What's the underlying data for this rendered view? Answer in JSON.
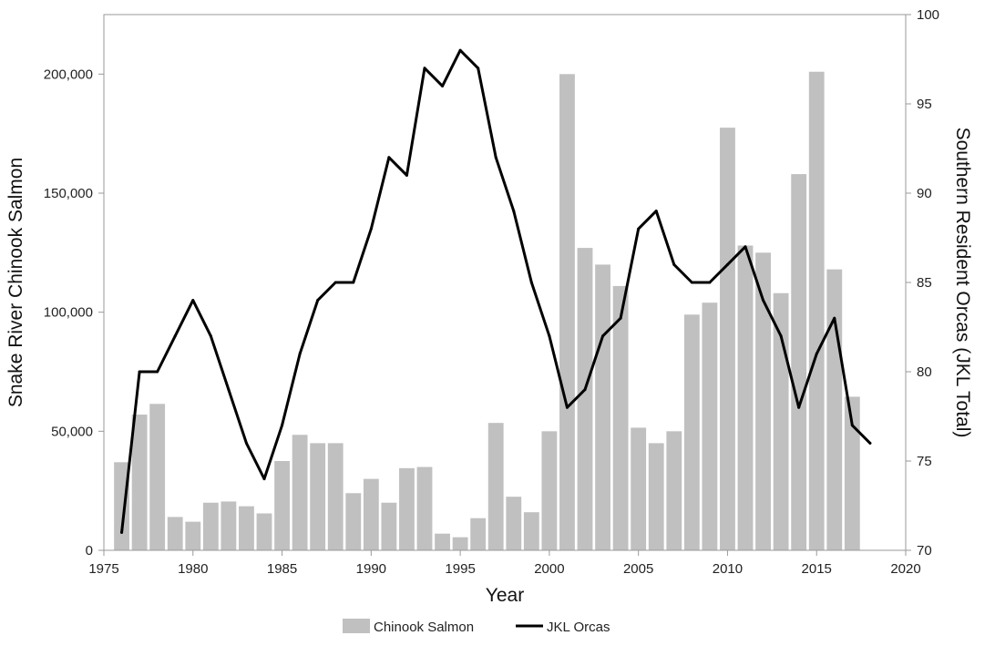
{
  "chart_data": {
    "type": "bar",
    "xlabel": "Year",
    "ylabel_left": "Snake River Chinook Salmon",
    "ylabel_right": "Southern Resident Orcas (JKL Total)",
    "xlim": [
      1975,
      2020
    ],
    "ylim_left": [
      0,
      225000
    ],
    "ylim_right": [
      70,
      100
    ],
    "x_ticks": [
      1975,
      1980,
      1985,
      1990,
      1995,
      2000,
      2005,
      2010,
      2015,
      2020
    ],
    "x_tick_labels": [
      "1975",
      "1980",
      "1985",
      "1990",
      "1995",
      "2000",
      "2005",
      "2010",
      "2015",
      "2020"
    ],
    "y_left_ticks": [
      0,
      50000,
      100000,
      150000,
      200000
    ],
    "y_left_tick_labels": [
      "0",
      "50,000",
      "100,000",
      "150,000",
      "200,000"
    ],
    "y_right_ticks": [
      70,
      75,
      80,
      85,
      90,
      95,
      100
    ],
    "y_right_tick_labels": [
      "70",
      "75",
      "80",
      "85",
      "90",
      "95",
      "100"
    ],
    "grid": false,
    "legend_position": "bottom-center",
    "series": [
      {
        "name": "Chinook Salmon",
        "type": "bar",
        "axis": "left",
        "color": "#c0c0c0",
        "x": [
          1976,
          1977,
          1978,
          1979,
          1980,
          1981,
          1982,
          1983,
          1984,
          1985,
          1986,
          1987,
          1988,
          1989,
          1990,
          1991,
          1992,
          1993,
          1994,
          1995,
          1996,
          1997,
          1998,
          1999,
          2000,
          2001,
          2002,
          2003,
          2004,
          2005,
          2006,
          2007,
          2008,
          2009,
          2010,
          2011,
          2012,
          2013,
          2014,
          2015,
          2016,
          2017
        ],
        "values": [
          37000,
          57000,
          61500,
          14000,
          12000,
          20000,
          20500,
          18500,
          15500,
          37500,
          48500,
          45000,
          45000,
          24000,
          30000,
          20000,
          34500,
          35000,
          7000,
          5500,
          13500,
          53500,
          22500,
          16000,
          50000,
          200000,
          127000,
          120000,
          111000,
          51500,
          45000,
          50000,
          99000,
          104000,
          177500,
          128000,
          125000,
          108000,
          158000,
          201000,
          118000,
          64500
        ]
      },
      {
        "name": "JKL Orcas",
        "type": "line",
        "axis": "right",
        "color": "#000000",
        "x": [
          1976,
          1977,
          1978,
          1979,
          1980,
          1981,
          1982,
          1983,
          1984,
          1985,
          1986,
          1987,
          1988,
          1989,
          1990,
          1991,
          1992,
          1993,
          1994,
          1995,
          1996,
          1997,
          1998,
          1999,
          2000,
          2001,
          2002,
          2003,
          2004,
          2005,
          2006,
          2007,
          2008,
          2009,
          2010,
          2011,
          2012,
          2013,
          2014,
          2015,
          2016,
          2017,
          2018
        ],
        "values": [
          71,
          80,
          80,
          82,
          84,
          82,
          79,
          76,
          74,
          77,
          81,
          84,
          85,
          85,
          88,
          92,
          91,
          97,
          96,
          98,
          97,
          92,
          89,
          85,
          82,
          78,
          79,
          82,
          83,
          88,
          89,
          86,
          85,
          85,
          86,
          87,
          84,
          82,
          78,
          81,
          83,
          77,
          76
        ]
      }
    ]
  }
}
